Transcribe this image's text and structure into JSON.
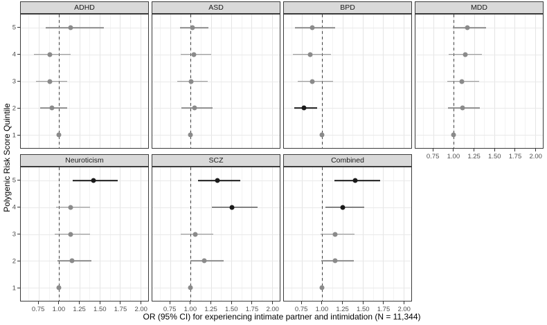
{
  "figure": {
    "x_axis_title": "OR (95% CI) for experiencing intimate partner and intimidation (N = 11,344)",
    "y_axis_title": "Polygenic Risk Score Quintile"
  },
  "chart_data": {
    "type": "scatter",
    "subtype": "faceted_forest_plot",
    "xlabel": "OR (95% CI) for experiencing intimate partner and intimidation (N = 11,344)",
    "ylabel": "Polygenic Risk Score Quintile",
    "x_domain": [
      0.53,
      2.095
    ],
    "x_ticks": [
      0.75,
      1.0,
      1.25,
      1.5,
      1.75,
      2.0
    ],
    "x_tick_labels": [
      "0.75",
      "1.00",
      "1.25",
      "1.50",
      "1.75",
      "2.00"
    ],
    "y_categories": [
      "1",
      "2",
      "3",
      "4",
      "5"
    ],
    "reference_line": 1.0,
    "grid": true,
    "legend": "none",
    "colors": {
      "significant": "#1a1a1a",
      "nonsignificant": "#8a8a8a",
      "strip_bg": "#d9d9d9",
      "panel_border": "#3a3a3a"
    },
    "facets": [
      {
        "label": "ADHD",
        "row": 0,
        "col": 0,
        "show_x_axis": false,
        "show_y_labels": true,
        "points": [
          {
            "quintile": 5,
            "or": 1.14,
            "ci_low": 0.84,
            "ci_high": 1.55,
            "significant": false
          },
          {
            "quintile": 4,
            "or": 0.89,
            "ci_low": 0.69,
            "ci_high": 1.14,
            "significant": false
          },
          {
            "quintile": 3,
            "or": 0.89,
            "ci_low": 0.72,
            "ci_high": 1.1,
            "significant": false
          },
          {
            "quintile": 2,
            "or": 0.91,
            "ci_low": 0.77,
            "ci_high": 1.1,
            "significant": false
          },
          {
            "quintile": 1,
            "or": 1.0,
            "ci_low": null,
            "ci_high": null,
            "significant": false
          }
        ]
      },
      {
        "label": "ASD",
        "row": 0,
        "col": 1,
        "show_x_axis": false,
        "show_y_labels": false,
        "points": [
          {
            "quintile": 5,
            "or": 1.02,
            "ci_low": 0.87,
            "ci_high": 1.22,
            "significant": false
          },
          {
            "quintile": 4,
            "or": 1.04,
            "ci_low": 0.88,
            "ci_high": 1.25,
            "significant": false
          },
          {
            "quintile": 3,
            "or": 1.01,
            "ci_low": 0.84,
            "ci_high": 1.21,
            "significant": false
          },
          {
            "quintile": 2,
            "or": 1.05,
            "ci_low": 0.89,
            "ci_high": 1.27,
            "significant": false
          },
          {
            "quintile": 1,
            "or": 1.0,
            "ci_low": null,
            "ci_high": null,
            "significant": false
          }
        ]
      },
      {
        "label": "BPD",
        "row": 0,
        "col": 2,
        "show_x_axis": false,
        "show_y_labels": false,
        "points": [
          {
            "quintile": 5,
            "or": 0.88,
            "ci_low": 0.67,
            "ci_high": 1.16,
            "significant": false
          },
          {
            "quintile": 4,
            "or": 0.85,
            "ci_low": 0.64,
            "ci_high": 1.11,
            "significant": false
          },
          {
            "quintile": 3,
            "or": 0.88,
            "ci_low": 0.7,
            "ci_high": 1.13,
            "significant": false
          },
          {
            "quintile": 2,
            "or": 0.78,
            "ci_low": 0.66,
            "ci_high": 0.94,
            "significant": true
          },
          {
            "quintile": 1,
            "or": 1.0,
            "ci_low": null,
            "ci_high": null,
            "significant": false
          }
        ]
      },
      {
        "label": "MDD",
        "row": 0,
        "col": 3,
        "show_x_axis": true,
        "show_y_labels": false,
        "points": [
          {
            "quintile": 5,
            "or": 1.17,
            "ci_low": 0.99,
            "ci_high": 1.4,
            "significant": false
          },
          {
            "quintile": 4,
            "or": 1.14,
            "ci_low": 0.94,
            "ci_high": 1.35,
            "significant": false
          },
          {
            "quintile": 3,
            "or": 1.1,
            "ci_low": 0.92,
            "ci_high": 1.31,
            "significant": false
          },
          {
            "quintile": 2,
            "or": 1.11,
            "ci_low": 0.93,
            "ci_high": 1.32,
            "significant": false
          },
          {
            "quintile": 1,
            "or": 1.0,
            "ci_low": null,
            "ci_high": null,
            "significant": false
          }
        ]
      },
      {
        "label": "Neuroticism",
        "row": 1,
        "col": 0,
        "show_x_axis": true,
        "show_y_labels": true,
        "points": [
          {
            "quintile": 5,
            "or": 1.42,
            "ci_low": 1.17,
            "ci_high": 1.72,
            "significant": true
          },
          {
            "quintile": 4,
            "or": 1.14,
            "ci_low": 0.96,
            "ci_high": 1.38,
            "significant": false
          },
          {
            "quintile": 3,
            "or": 1.14,
            "ci_low": 0.95,
            "ci_high": 1.38,
            "significant": false
          },
          {
            "quintile": 2,
            "or": 1.16,
            "ci_low": 0.98,
            "ci_high": 1.4,
            "significant": false
          },
          {
            "quintile": 1,
            "or": 1.0,
            "ci_low": null,
            "ci_high": null,
            "significant": false
          }
        ]
      },
      {
        "label": "SCZ",
        "row": 1,
        "col": 1,
        "show_x_axis": true,
        "show_y_labels": false,
        "points": [
          {
            "quintile": 5,
            "or": 1.33,
            "ci_low": 1.09,
            "ci_high": 1.61,
            "significant": true
          },
          {
            "quintile": 4,
            "or": 1.51,
            "ci_low": 1.26,
            "ci_high": 1.82,
            "significant": true
          },
          {
            "quintile": 3,
            "or": 1.06,
            "ci_low": 0.88,
            "ci_high": 1.28,
            "significant": false
          },
          {
            "quintile": 2,
            "or": 1.17,
            "ci_low": 1.0,
            "ci_high": 1.41,
            "significant": false
          },
          {
            "quintile": 1,
            "or": 1.0,
            "ci_low": null,
            "ci_high": null,
            "significant": false
          }
        ]
      },
      {
        "label": "Combined",
        "row": 1,
        "col": 2,
        "show_x_axis": true,
        "show_y_labels": false,
        "points": [
          {
            "quintile": 5,
            "or": 1.41,
            "ci_low": 1.15,
            "ci_high": 1.71,
            "significant": true
          },
          {
            "quintile": 4,
            "or": 1.25,
            "ci_low": 1.04,
            "ci_high": 1.52,
            "significant": true
          },
          {
            "quintile": 3,
            "or": 1.16,
            "ci_low": 0.98,
            "ci_high": 1.4,
            "significant": false
          },
          {
            "quintile": 2,
            "or": 1.16,
            "ci_low": 0.99,
            "ci_high": 1.39,
            "significant": false
          },
          {
            "quintile": 1,
            "or": 1.0,
            "ci_low": null,
            "ci_high": null,
            "significant": false
          }
        ]
      }
    ]
  }
}
